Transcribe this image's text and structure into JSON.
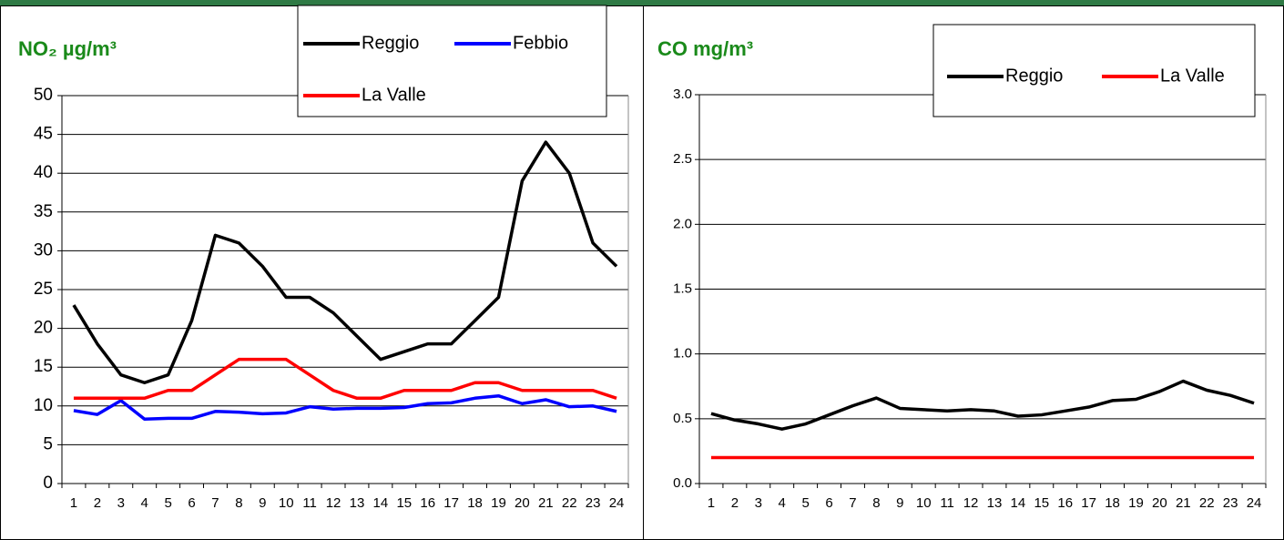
{
  "chart_data": [
    {
      "type": "line",
      "title": "NO₂ µg/m³",
      "categories": [
        "1",
        "2",
        "3",
        "4",
        "5",
        "6",
        "7",
        "8",
        "9",
        "10",
        "11",
        "12",
        "13",
        "14",
        "15",
        "16",
        "17",
        "18",
        "19",
        "20",
        "21",
        "22",
        "23",
        "24"
      ],
      "series": [
        {
          "name": "Reggio",
          "color": "#000000",
          "values": [
            23,
            18,
            14,
            13,
            14,
            21,
            32,
            31,
            28,
            24,
            24,
            22,
            19,
            16,
            17,
            18,
            18,
            21,
            24,
            39,
            44,
            40,
            31,
            28
          ]
        },
        {
          "name": "Febbio",
          "color": "#0000ff",
          "values": [
            9.4,
            8.9,
            10.7,
            8.3,
            8.4,
            8.4,
            9.3,
            9.2,
            9.0,
            9.1,
            9.9,
            9.6,
            9.7,
            9.7,
            9.8,
            10.3,
            10.4,
            11.0,
            11.3,
            10.3,
            10.8,
            9.9,
            10.0,
            9.3
          ]
        },
        {
          "name": "La Valle",
          "color": "#ff0000",
          "values": [
            11,
            11,
            11,
            11,
            12,
            12,
            14,
            16,
            16,
            16,
            14,
            12,
            11,
            11,
            12,
            12,
            12,
            13,
            13,
            12,
            12,
            12,
            12,
            11
          ]
        }
      ],
      "ylim": [
        0,
        50
      ],
      "yticks": [
        0,
        5,
        10,
        15,
        20,
        25,
        30,
        35,
        40,
        45,
        50
      ],
      "grid": true
    },
    {
      "type": "line",
      "title": "CO mg/m³",
      "categories": [
        "1",
        "2",
        "3",
        "4",
        "5",
        "6",
        "7",
        "8",
        "9",
        "10",
        "11",
        "12",
        "13",
        "14",
        "15",
        "16",
        "17",
        "18",
        "19",
        "20",
        "21",
        "22",
        "23",
        "24"
      ],
      "series": [
        {
          "name": "Reggio",
          "color": "#000000",
          "values": [
            0.54,
            0.49,
            0.46,
            0.42,
            0.46,
            0.53,
            0.6,
            0.66,
            0.58,
            0.57,
            0.56,
            0.57,
            0.56,
            0.52,
            0.53,
            0.56,
            0.59,
            0.64,
            0.65,
            0.71,
            0.79,
            0.72,
            0.68,
            0.62
          ]
        },
        {
          "name": "La Valle",
          "color": "#ff0000",
          "values": [
            0.2,
            0.2,
            0.2,
            0.2,
            0.2,
            0.2,
            0.2,
            0.2,
            0.2,
            0.2,
            0.2,
            0.2,
            0.2,
            0.2,
            0.2,
            0.2,
            0.2,
            0.2,
            0.2,
            0.2,
            0.2,
            0.2,
            0.2,
            0.2
          ]
        }
      ],
      "ylim": [
        0,
        3
      ],
      "yticks": [
        {
          "value": 0,
          "label": "0.0"
        },
        0.5,
        {
          "value": 1,
          "label": "1.0"
        },
        1.5,
        {
          "value": 2,
          "label": "2.0"
        },
        2.5,
        {
          "value": 3,
          "label": "3.0"
        }
      ],
      "grid": true
    }
  ]
}
